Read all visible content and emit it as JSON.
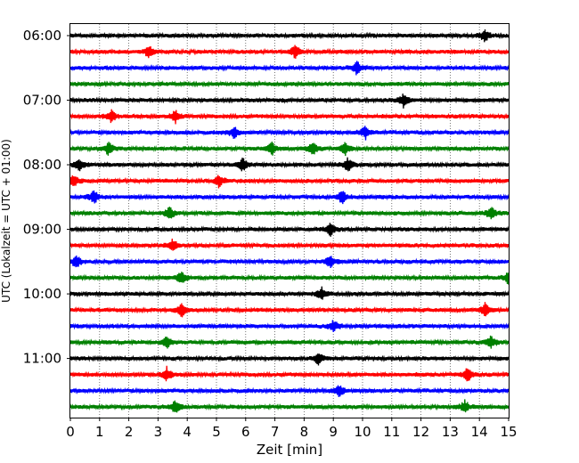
{
  "chart_data": {
    "type": "line",
    "title": "",
    "xlabel": "Zeit  [min]",
    "ylabel": "UTC (Lokalzeit = UTC + 01:00)",
    "xlim": [
      0,
      15
    ],
    "x_ticks": [
      "0",
      "1",
      "2",
      "3",
      "4",
      "5",
      "6",
      "7",
      "8",
      "9",
      "10",
      "11",
      "12",
      "13",
      "14",
      "15"
    ],
    "y_tick_labels": [
      "06:00",
      "07:00",
      "08:00",
      "09:00",
      "10:00",
      "11:00"
    ],
    "grid": "vertical dotted",
    "trace_start_times_utc": [
      "06:00",
      "06:15",
      "06:30",
      "06:45",
      "07:00",
      "07:15",
      "07:30",
      "07:45",
      "08:00",
      "08:15",
      "08:30",
      "08:45",
      "09:00",
      "09:15",
      "09:30",
      "09:45",
      "10:00",
      "10:15",
      "10:30",
      "10:45",
      "11:00",
      "11:15",
      "11:30",
      "11:45"
    ],
    "color_cycle": [
      "#000000",
      "#ff0000",
      "#0000ff",
      "#008000"
    ],
    "spikes_min": [
      [
        14.2
      ],
      [
        2.7,
        7.7
      ],
      [
        9.8
      ],
      [],
      [
        11.4
      ],
      [
        1.4,
        3.6
      ],
      [
        5.6,
        10.1
      ],
      [
        1.3,
        6.9,
        8.3,
        9.4
      ],
      [
        0.3,
        5.9,
        9.5
      ],
      [
        0.1,
        5.1
      ],
      [
        0.8,
        9.3
      ],
      [
        3.4,
        14.4
      ],
      [
        8.9
      ],
      [
        3.5
      ],
      [
        0.2,
        8.9
      ],
      [
        3.8,
        15.0
      ],
      [
        8.6
      ],
      [
        3.8,
        14.2
      ],
      [
        9.0
      ],
      [
        3.3,
        14.4
      ],
      [
        8.5
      ],
      [
        3.3,
        13.6
      ],
      [
        9.2
      ],
      [
        3.6,
        13.5
      ]
    ]
  }
}
